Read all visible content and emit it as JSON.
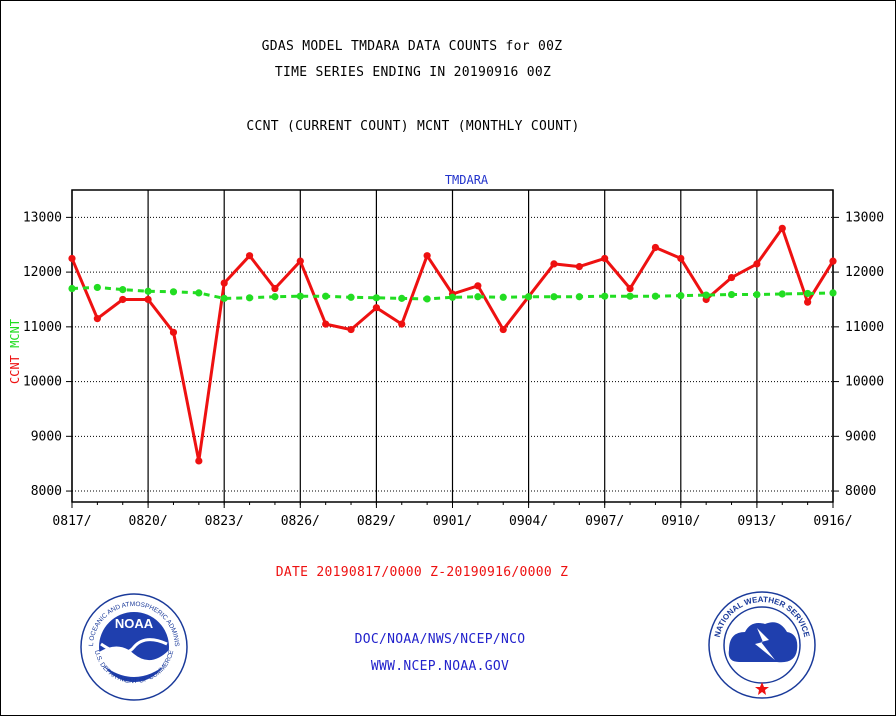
{
  "header": {
    "title_line1": "GDAS MODEL TMDARA DATA COUNTS for 00Z",
    "title_line2": "TIME SERIES ENDING IN 20190916 00Z",
    "subtitle": "CCNT (CURRENT COUNT) MCNT (MONTHLY COUNT)"
  },
  "footer": {
    "date_range": "DATE 20190817/0000 Z-20190916/0000 Z",
    "org_line": "DOC/NOAA/NWS/NCEP/NCO",
    "website": "WWW.NCEP.NOAA.GOV"
  },
  "logos": {
    "left_text": "NOAA",
    "left_ring": "NATIONAL OCEANIC AND ATMOSPHERIC ADMINISTRATION",
    "left_ring_bottom": "U.S. DEPARTMENT OF COMMERCE",
    "right_ring": "NATIONAL WEATHER SERVICE"
  },
  "colors": {
    "ccnt": "#ee1111",
    "mcnt": "#22dd22",
    "plot_label": "#2233cc",
    "date_text": "#ee1111",
    "footer_text": "#2222cc"
  },
  "chart_data": {
    "type": "line",
    "title": "TMDARA",
    "ylabel_left": [
      "CCNT",
      "MCNT"
    ],
    "x_tick_labels": [
      "0817/",
      "0820/",
      "0823/",
      "0826/",
      "0829/",
      "0901/",
      "0904/",
      "0907/",
      "0910/",
      "0913/",
      "0916/"
    ],
    "ylim": [
      7800,
      13500
    ],
    "y_ticks": [
      8000,
      9000,
      10000,
      11000,
      12000,
      13000
    ],
    "y_tick_labels": [
      "8000",
      "9000",
      "10000",
      "11000",
      "12000",
      "13000"
    ],
    "grid": true,
    "x": [
      "0817",
      "0818",
      "0819",
      "0820",
      "0821",
      "0822",
      "0823",
      "0824",
      "0825",
      "0826",
      "0827",
      "0828",
      "0829",
      "0830",
      "0831",
      "0901",
      "0902",
      "0903",
      "0904",
      "0905",
      "0906",
      "0907",
      "0908",
      "0909",
      "0910",
      "0911",
      "0912",
      "0913",
      "0914",
      "0915",
      "0916"
    ],
    "series": [
      {
        "name": "CCNT",
        "style": "solid",
        "values": [
          12250,
          11150,
          11500,
          11500,
          10900,
          8550,
          11800,
          12300,
          11700,
          12200,
          11050,
          10950,
          11350,
          11050,
          12300,
          11600,
          11750,
          10950,
          11550,
          12150,
          12100,
          12250,
          11700,
          12450,
          12250,
          11500,
          11900,
          12150,
          12800,
          11450,
          12200
        ]
      },
      {
        "name": "MCNT",
        "style": "dashed",
        "values": [
          11700,
          11720,
          11680,
          11650,
          11640,
          11620,
          11520,
          11530,
          11550,
          11560,
          11560,
          11540,
          11530,
          11520,
          11510,
          11540,
          11550,
          11540,
          11550,
          11550,
          11550,
          11560,
          11560,
          11560,
          11570,
          11580,
          11590,
          11590,
          11600,
          11610,
          11620
        ]
      }
    ]
  }
}
